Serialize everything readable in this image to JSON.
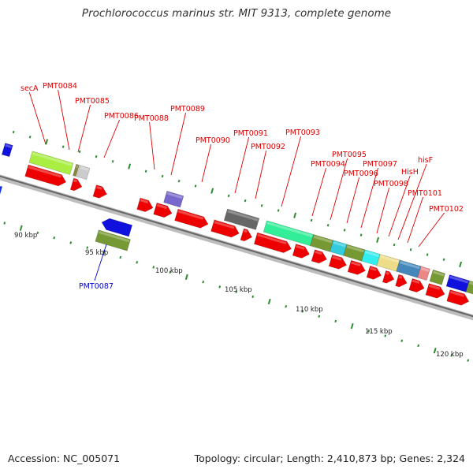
{
  "title": "Prochlorococcus marinus str. MIT 9313, complete genome",
  "footer": {
    "accession": "Accession: NC_005071",
    "summary": "Topology: circular; Length: 2,410,873 bp; Genes: 2,324"
  },
  "ruler": {
    "major_labels": [
      "90 kbp",
      "95 kbp",
      "100 kbp",
      "105 kbp",
      "110 kbp",
      "115 kbp",
      "120 kbp"
    ]
  },
  "colors": {
    "forward_gene": "#ee0000",
    "label_red": "#dd0000",
    "label_blue": "#0000cc",
    "backbone": "#999999",
    "tick": "#2e8b2e"
  },
  "gene_labels": [
    "secA",
    "PMT0084",
    "PMT0085",
    "PMT0086",
    "PMT0088",
    "PMT0089",
    "PMT0090",
    "PMT0091",
    "PMT0092",
    "PMT0093",
    "PMT0094",
    "PMT0095",
    "PMT0096",
    "PMT0097",
    "PMT0098",
    "HisH",
    "hisF",
    "PMT0101",
    "PMT0102",
    "PMT0087"
  ]
}
